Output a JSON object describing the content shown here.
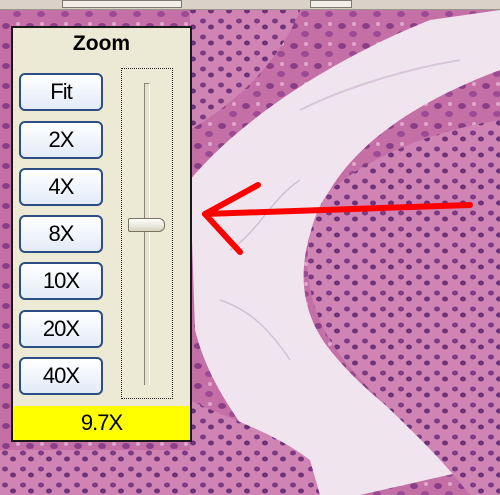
{
  "zoom_panel": {
    "title": "Zoom",
    "buttons": [
      {
        "label": "Fit"
      },
      {
        "label": "2X"
      },
      {
        "label": "4X"
      },
      {
        "label": "8X"
      },
      {
        "label": "10X"
      },
      {
        "label": "20X"
      },
      {
        "label": "40X"
      }
    ],
    "slider": {
      "value_fraction": 0.47
    },
    "readout": "9.7X",
    "readout_color": "#ffff00"
  },
  "annotation": {
    "arrow_color": "#ff0000"
  },
  "icons": [
    "left-arrow-annotation-icon"
  ]
}
